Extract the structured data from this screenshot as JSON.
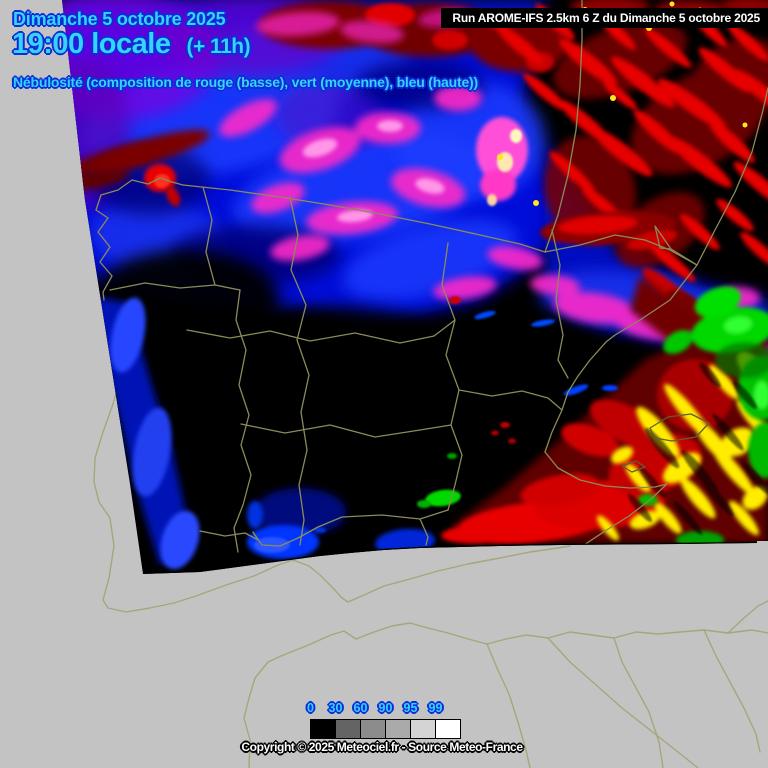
{
  "titles": {
    "date": "Dimanche 5 octobre 2025",
    "time": "19:00 locale",
    "time_offset": "(+ 11h)",
    "product": "Nébulosité (composition de rouge (basse), vert (moyenne), bleu (haute))",
    "run_info": "Run AROME-IFS 2.5km 6 Z du Dimanche 5 octobre 2025"
  },
  "legend": {
    "tick_labels": [
      "0",
      "30",
      "60",
      "90",
      "95",
      "99"
    ],
    "cell_colors": [
      "#000000",
      "#646464",
      "#8c8c8c",
      "#aaaaaa",
      "#d4d4d4",
      "#ffffff"
    ]
  },
  "footer": {
    "copyright": "Copyright © 2025 Meteociel.fr - Source Meteo-France"
  },
  "colors": {
    "outside_background": "#c3c3c3",
    "model_domain_background": "#000000",
    "coastline_outside_domain": "#a6a67c",
    "coastline_inside_domain": "#8b8b5a",
    "label_cyan": "#38d2ff",
    "label_outline_blue": "#0a2fd6",
    "banner_background": "#000000",
    "banner_text": "#ffffff",
    "cloud_low_red": "#e60000",
    "cloud_mid_green": "#00d800",
    "cloud_high_blue": "#0a18e0",
    "cloud_low_plus_high_magenta": "#ff2cc8"
  }
}
